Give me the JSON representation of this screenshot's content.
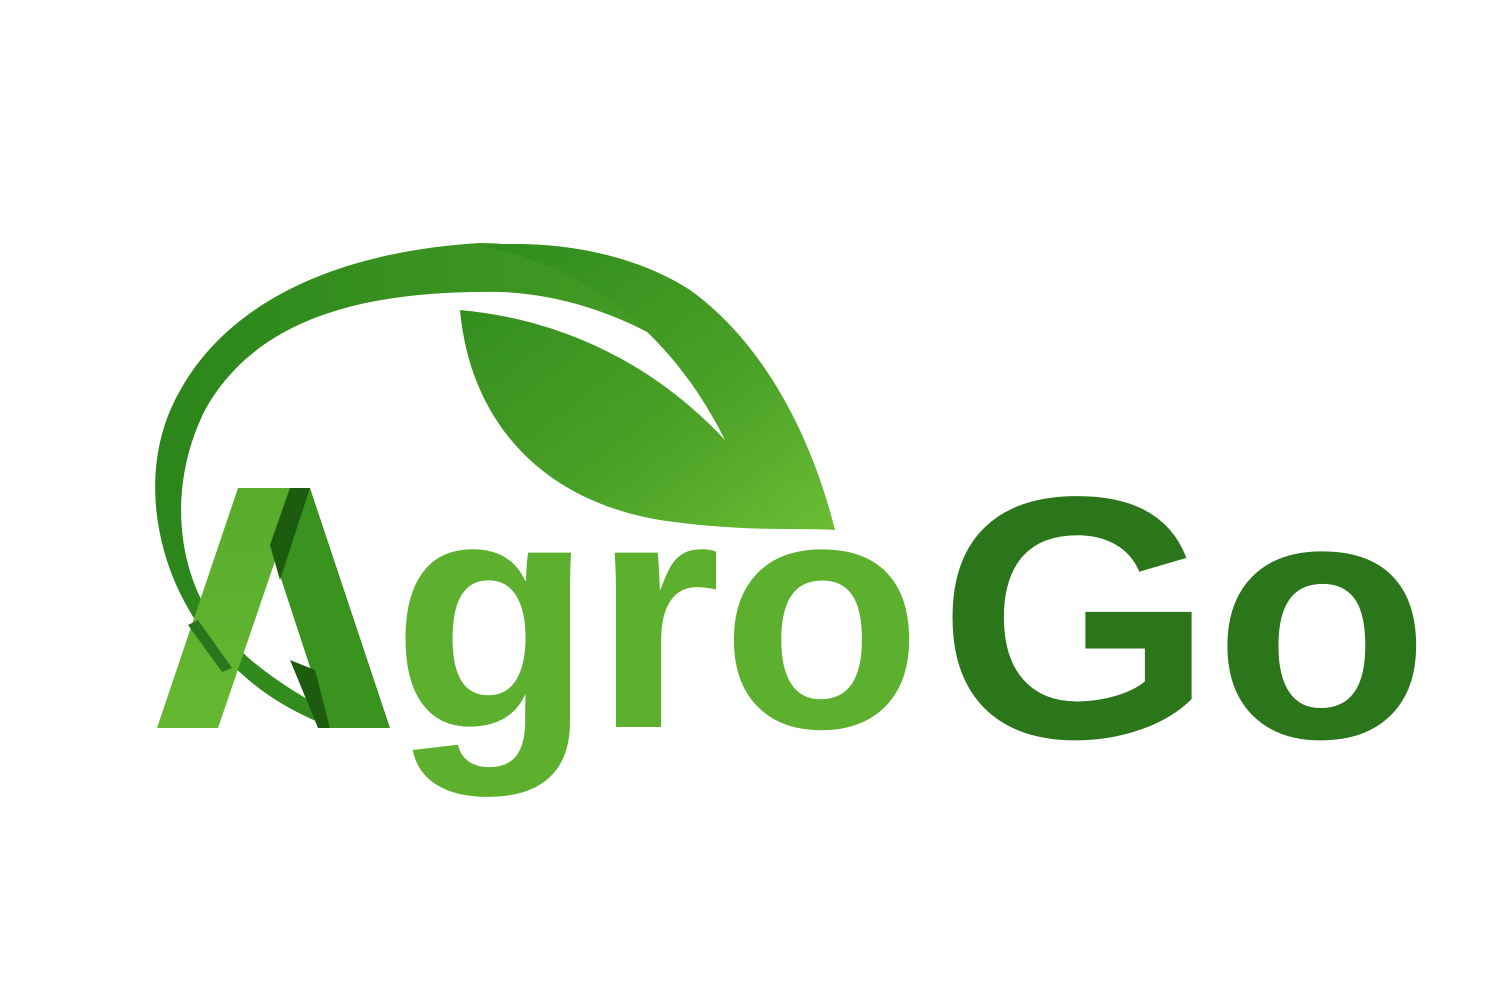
{
  "logo": {
    "word_part_1": "Agro",
    "word_part_2": "Go",
    "colors": {
      "light_green": "#5db02e",
      "mid_green": "#3b931f",
      "dark_green": "#2b751a",
      "shadow_green": "#1d5c0f",
      "background": "#ffffff"
    },
    "icon": "leaf-icon"
  }
}
